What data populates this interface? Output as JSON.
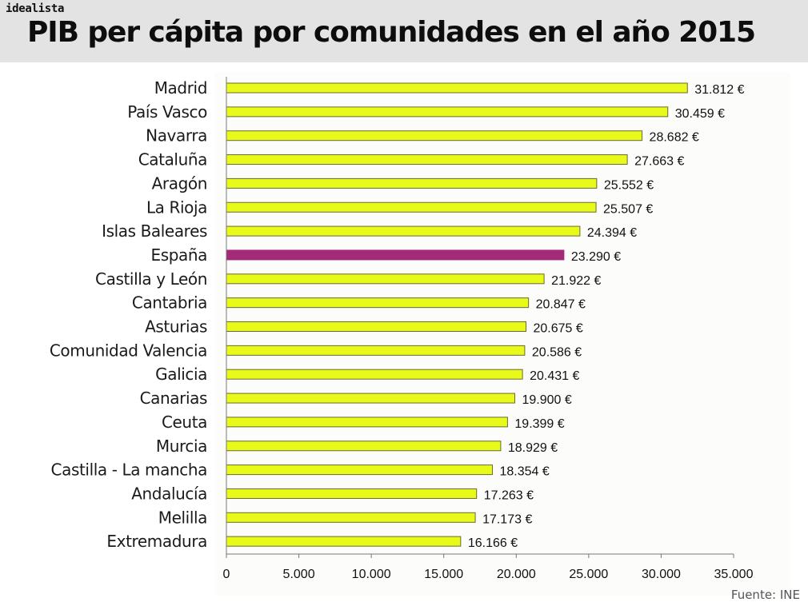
{
  "brand": {
    "name": "idealista"
  },
  "header": {
    "title": "PIB per cápita por comunidades en el año 2015"
  },
  "source": {
    "text": "Fuente: INE"
  },
  "colors": {
    "bar": "#e8fa19",
    "highlight": "#a32a78",
    "bar_stroke": "#6a6a30",
    "axis": "#777777"
  },
  "chart_data": {
    "type": "bar",
    "orientation": "horizontal",
    "title": "PIB per cápita por comunidades en el año 2015",
    "xlabel": "",
    "ylabel": "",
    "xlim": [
      0,
      35000
    ],
    "grid": false,
    "highlight_category": "España",
    "categories": [
      "Madrid",
      "País Vasco",
      "Navarra",
      "Cataluña",
      "Aragón",
      "La Rioja",
      "Islas Baleares",
      "España",
      "Castilla y León",
      "Cantabria",
      "Asturias",
      "Comunidad Valencia",
      "Galicia",
      "Canarias",
      "Ceuta",
      "Murcia",
      "Castilla - La mancha",
      "Andalucía",
      "Melilla",
      "Extremadura"
    ],
    "values": [
      31812,
      30459,
      28682,
      27663,
      25552,
      25507,
      24394,
      23290,
      21922,
      20847,
      20675,
      20586,
      20431,
      19900,
      19399,
      18929,
      18354,
      17263,
      17173,
      16166
    ],
    "value_labels": [
      "31.812 €",
      "30.459 €",
      "28.682 €",
      "27.663 €",
      "25.552 €",
      "25.507 €",
      "24.394 €",
      "23.290 €",
      "21.922 €",
      "20.847 €",
      "20.675 €",
      "20.586 €",
      "20.431 €",
      "19.900 €",
      "19.399 €",
      "18.929 €",
      "18.354 €",
      "17.263 €",
      "17.173 €",
      "16.166 €"
    ],
    "x_ticks": [
      0,
      5000,
      10000,
      15000,
      20000,
      25000,
      30000,
      35000
    ],
    "x_tick_labels": [
      "0",
      "5.000",
      "10.000",
      "15.000",
      "20.000",
      "25.000",
      "30.000",
      "35.000"
    ]
  }
}
